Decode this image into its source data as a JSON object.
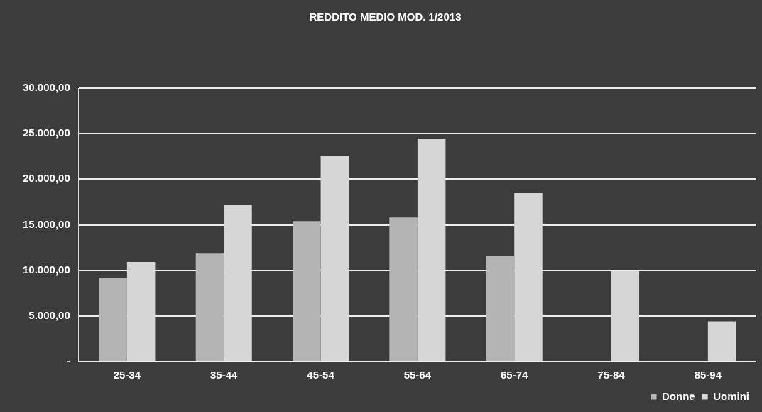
{
  "chart_data": {
    "type": "bar",
    "title": "REDDITO MEDIO MOD. 1/2013",
    "categories": [
      "25-34",
      "35-44",
      "45-54",
      "55-64",
      "65-74",
      "75-84",
      "85-94"
    ],
    "series": [
      {
        "name": "Donne",
        "color": "#b4b4b4",
        "values": [
          9200,
          11900,
          15400,
          15800,
          11600,
          null,
          null
        ]
      },
      {
        "name": "Uomini",
        "color": "#d6d6d6",
        "values": [
          10900,
          17200,
          22600,
          24400,
          18500,
          9900,
          4400
        ]
      }
    ],
    "ylim": [
      0,
      30000
    ],
    "yticks": [
      {
        "value": 0,
        "label": "-"
      },
      {
        "value": 5000,
        "label": "5.000,00"
      },
      {
        "value": 10000,
        "label": "10.000,00"
      },
      {
        "value": 15000,
        "label": "15.000,00"
      },
      {
        "value": 20000,
        "label": "20.000,00"
      },
      {
        "value": 25000,
        "label": "25.000,00"
      },
      {
        "value": 30000,
        "label": "30.000,00"
      }
    ],
    "grid": "y",
    "legend": "bottom right"
  }
}
